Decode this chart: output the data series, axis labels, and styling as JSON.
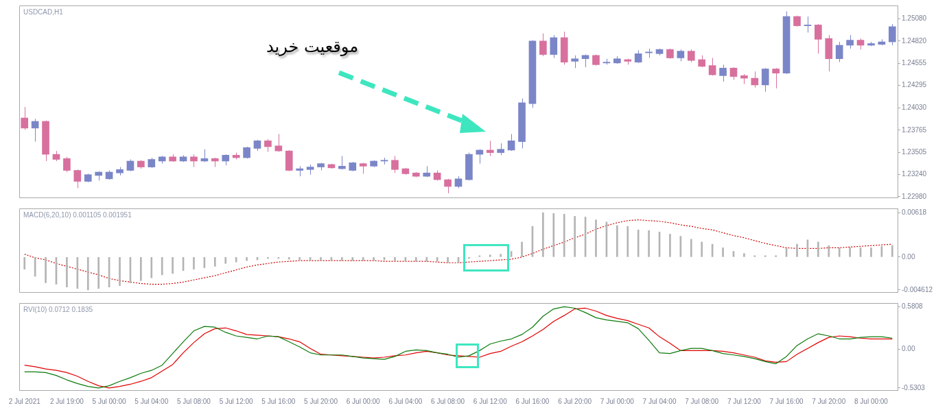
{
  "chart_data": [
    {
      "type": "candlestick",
      "title": "USDCAD,H1",
      "ohlc": [
        [
          1.2391,
          1.2404,
          1.2377,
          1.2379
        ],
        [
          1.2379,
          1.239,
          1.2363,
          1.2387
        ],
        [
          1.2387,
          1.2388,
          1.234,
          1.2348
        ],
        [
          1.2348,
          1.2352,
          1.234,
          1.2342
        ],
        [
          1.2343,
          1.2345,
          1.2327,
          1.2329
        ],
        [
          1.2329,
          1.233,
          1.2308,
          1.2316
        ],
        [
          1.2316,
          1.2325,
          1.2315,
          1.2324
        ],
        [
          1.2323,
          1.2328,
          1.2317,
          1.2327
        ],
        [
          1.2319,
          1.2329,
          1.2318,
          1.2327
        ],
        [
          1.2326,
          1.2333,
          1.2323,
          1.233
        ],
        [
          1.2329,
          1.2342,
          1.2328,
          1.234
        ],
        [
          1.234,
          1.2341,
          1.2331,
          1.2333
        ],
        [
          1.2333,
          1.2344,
          1.2332,
          1.2342
        ],
        [
          1.234,
          1.2346,
          1.2337,
          1.2345
        ],
        [
          1.2345,
          1.2348,
          1.2339,
          1.234
        ],
        [
          1.234,
          1.2347,
          1.2339,
          1.2345
        ],
        [
          1.2345,
          1.2348,
          1.2333,
          1.234
        ],
        [
          1.234,
          1.2354,
          1.2339,
          1.2343
        ],
        [
          1.2343,
          1.2344,
          1.2333,
          1.234
        ],
        [
          1.234,
          1.2348,
          1.2335,
          1.2347
        ],
        [
          1.2347,
          1.235,
          1.2342,
          1.2344
        ],
        [
          1.2344,
          1.2357,
          1.2343,
          1.2356
        ],
        [
          1.2355,
          1.2365,
          1.2352,
          1.2364
        ],
        [
          1.2364,
          1.2366,
          1.2351,
          1.2357
        ],
        [
          1.2358,
          1.2372,
          1.2351,
          1.2352
        ],
        [
          1.2352,
          1.2353,
          1.2328,
          1.2329
        ],
        [
          1.2329,
          1.2334,
          1.2322,
          1.2331
        ],
        [
          1.233,
          1.2336,
          1.2324,
          1.2333
        ],
        [
          1.2333,
          1.2338,
          1.2329,
          1.2337
        ],
        [
          1.2336,
          1.2337,
          1.2331,
          1.2332
        ],
        [
          1.2331,
          1.2346,
          1.233,
          1.2334
        ],
        [
          1.2329,
          1.2339,
          1.2328,
          1.2338
        ],
        [
          1.2337,
          1.2338,
          1.2325,
          1.2334
        ],
        [
          1.2334,
          1.2341,
          1.2333,
          1.234
        ],
        [
          1.234,
          1.2344,
          1.2336,
          1.2341
        ],
        [
          1.2341,
          1.2346,
          1.2326,
          1.233
        ],
        [
          1.2331,
          1.2332,
          1.2324,
          1.2325
        ],
        [
          1.2326,
          1.2327,
          1.2321,
          1.2322
        ],
        [
          1.2322,
          1.2334,
          1.2321,
          1.2326
        ],
        [
          1.2326,
          1.2329,
          1.2317,
          1.2318
        ],
        [
          1.2318,
          1.2319,
          1.2302,
          1.231
        ],
        [
          1.231,
          1.2322,
          1.2308,
          1.2319
        ],
        [
          1.2318,
          1.235,
          1.2317,
          1.2348
        ],
        [
          1.2348,
          1.2354,
          1.2337,
          1.2353
        ],
        [
          1.2353,
          1.2364,
          1.2346,
          1.235
        ],
        [
          1.235,
          1.2361,
          1.2347,
          1.2354
        ],
        [
          1.2353,
          1.2372,
          1.2352,
          1.2364
        ],
        [
          1.2363,
          1.2414,
          1.2355,
          1.2409
        ],
        [
          1.2408,
          1.2483,
          1.2403,
          1.2482
        ],
        [
          1.2482,
          1.2491,
          1.2464,
          1.2466
        ],
        [
          1.2466,
          1.2489,
          1.2462,
          1.2486
        ],
        [
          1.2486,
          1.2493,
          1.2454,
          1.2457
        ],
        [
          1.2458,
          1.2465,
          1.245,
          1.2461
        ],
        [
          1.2461,
          1.2466,
          1.2451,
          1.2465
        ],
        [
          1.2465,
          1.2466,
          1.2453,
          1.2454
        ],
        [
          1.2456,
          1.2461,
          1.2454,
          1.2457
        ],
        [
          1.2456,
          1.2464,
          1.2455,
          1.2461
        ],
        [
          1.246,
          1.2461,
          1.2454,
          1.2458
        ],
        [
          1.2457,
          1.2471,
          1.2456,
          1.2467
        ],
        [
          1.2468,
          1.2473,
          1.2462,
          1.2469
        ],
        [
          1.2467,
          1.2473,
          1.2465,
          1.2472
        ],
        [
          1.2472,
          1.2473,
          1.2461,
          1.2462
        ],
        [
          1.2462,
          1.2472,
          1.2458,
          1.247
        ],
        [
          1.247,
          1.2472,
          1.2457,
          1.2459
        ],
        [
          1.246,
          1.2465,
          1.2451,
          1.2452
        ],
        [
          1.2453,
          1.2462,
          1.2441,
          1.2442
        ],
        [
          1.2441,
          1.2454,
          1.2434,
          1.245
        ],
        [
          1.245,
          1.2451,
          1.2436,
          1.244
        ],
        [
          1.2441,
          1.2443,
          1.2431,
          1.2438
        ],
        [
          1.2438,
          1.2446,
          1.2427,
          1.243
        ],
        [
          1.243,
          1.245,
          1.2422,
          1.2449
        ],
        [
          1.2449,
          1.245,
          1.2426,
          1.2444
        ],
        [
          1.2444,
          1.2517,
          1.2443,
          1.2511
        ],
        [
          1.2511,
          1.2512,
          1.2499,
          1.25
        ],
        [
          1.25,
          1.2511,
          1.2492,
          1.2501
        ],
        [
          1.2501,
          1.2502,
          1.2467,
          1.2484
        ],
        [
          1.2485,
          1.2489,
          1.2446,
          1.2461
        ],
        [
          1.2461,
          1.2481,
          1.2457,
          1.2477
        ],
        [
          1.2477,
          1.2489,
          1.2473,
          1.2483
        ],
        [
          1.2483,
          1.2485,
          1.2472,
          1.2477
        ],
        [
          1.2477,
          1.2481,
          1.2476,
          1.2479
        ],
        [
          1.2478,
          1.2484,
          1.2477,
          1.2481
        ],
        [
          1.2481,
          1.2502,
          1.2477,
          1.2499
        ]
      ],
      "colors": [
        "#d8709e",
        "#7b86c8",
        "#d8709e",
        "#d8709e",
        "#d8709e",
        "#d8709e",
        "#7b86c8",
        "#7b86c8",
        "#7b86c8",
        "#7b86c8",
        "#7b86c8",
        "#d8709e",
        "#7b86c8",
        "#7b86c8",
        "#d8709e",
        "#7b86c8",
        "#d8709e",
        "#7b86c8",
        "#d8709e",
        "#7b86c8",
        "#d8709e",
        "#7b86c8",
        "#7b86c8",
        "#d8709e",
        "#d8709e",
        "#d8709e",
        "#7b86c8",
        "#7b86c8",
        "#7b86c8",
        "#d8709e",
        "#7b86c8",
        "#7b86c8",
        "#d8709e",
        "#7b86c8",
        "#7b86c8",
        "#d8709e",
        "#d8709e",
        "#d8709e",
        "#7b86c8",
        "#d8709e",
        "#d8709e",
        "#7b86c8",
        "#7b86c8",
        "#7b86c8",
        "#d8709e",
        "#7b86c8",
        "#7b86c8",
        "#7b86c8",
        "#7b86c8",
        "#d8709e",
        "#7b86c8",
        "#d8709e",
        "#7b86c8",
        "#7b86c8",
        "#d8709e",
        "#7b86c8",
        "#7b86c8",
        "#d8709e",
        "#7b86c8",
        "#7b86c8",
        "#7b86c8",
        "#d8709e",
        "#7b86c8",
        "#d8709e",
        "#d8709e",
        "#d8709e",
        "#7b86c8",
        "#d8709e",
        "#d8709e",
        "#d8709e",
        "#7b86c8",
        "#d8709e",
        "#7b86c8",
        "#d8709e",
        "#7b86c8",
        "#d8709e",
        "#d8709e",
        "#7b86c8",
        "#7b86c8",
        "#d8709e",
        "#7b86c8",
        "#7b86c8",
        "#7b86c8"
      ],
      "ylim": [
        1.2297,
        1.2524
      ],
      "yticks": [
        {
          "value": 1.2298,
          "label": "1.22980"
        },
        {
          "value": 1.2324,
          "label": "1.23240"
        },
        1.23505,
        1.23765,
        {
          "value": 1.2403,
          "label": "1.24030"
        },
        1.24295,
        1.24555,
        {
          "value": 1.2482,
          "label": "1.24820"
        },
        {
          "value": 1.2508,
          "label": "1.25080"
        }
      ],
      "tick_labels": "y",
      "annotations": [
        "موقعیت خرید"
      ]
    },
    {
      "type": "bar",
      "title": "MACD(6,20,10) 0.001105 0.001951",
      "series": [
        {
          "type": "bar",
          "color": "#b4b4b4",
          "values": [
            -0.0017,
            -0.0027,
            -0.0036,
            -0.0038,
            -0.0042,
            -0.0044,
            -0.0046,
            -0.0044,
            -0.0042,
            -0.004,
            -0.0036,
            -0.0033,
            -0.0029,
            -0.0025,
            -0.0023,
            -0.0019,
            -0.0017,
            -0.0015,
            -0.0013,
            -0.0009,
            -0.0007,
            -0.0005,
            -0.0004,
            -0.0002,
            -0.0002,
            -0.0003,
            -0.0004,
            -0.0005,
            -0.0005,
            -0.0005,
            -0.0005,
            -0.0005,
            -0.0005,
            -0.0005,
            -0.0004,
            -0.0005,
            -0.0006,
            -0.0006,
            -0.0006,
            -0.0006,
            -0.0008,
            -0.0008,
            -0.0002,
            0.0001,
            0.0003,
            0.0004,
            0.0008,
            0.0021,
            0.0043,
            0.0062,
            0.0061,
            0.006,
            0.0057,
            0.0056,
            0.0052,
            0.0049,
            0.0044,
            0.0043,
            0.0038,
            0.0037,
            0.0035,
            0.0032,
            0.0029,
            0.0025,
            0.0021,
            0.0018,
            0.0013,
            0.0008,
            0.0005,
            0.0002,
            0.0002,
            0.0002,
            0.0012,
            0.0018,
            0.0024,
            0.0021,
            0.0016,
            0.0013,
            0.0013,
            0.0013,
            0.0013,
            0.0015,
            0.0016
          ]
        },
        {
          "type": "line",
          "color": "#cc0000",
          "line_style": "dotted",
          "values": [
            0.0004,
            -0.0001,
            -0.0004,
            -0.0009,
            -0.0013,
            -0.0017,
            -0.0021,
            -0.0025,
            -0.003,
            -0.0033,
            -0.0035,
            -0.0037,
            -0.0038,
            -0.0038,
            -0.0037,
            -0.0035,
            -0.0032,
            -0.0029,
            -0.0026,
            -0.0022,
            -0.0018,
            -0.0014,
            -0.0011,
            -0.0009,
            -0.0007,
            -0.0006,
            -0.0005,
            -0.0005,
            -0.0005,
            -0.0005,
            -0.0005,
            -0.0005,
            -0.0005,
            -0.0005,
            -0.0006,
            -0.0006,
            -0.0006,
            -0.0006,
            -0.0006,
            -0.0007,
            -0.0008,
            -0.0008,
            -0.0007,
            -0.0006,
            -0.0005,
            -0.0004,
            -0.0003,
            0.0,
            0.0005,
            0.0011,
            0.0016,
            0.0021,
            0.0027,
            0.0032,
            0.0039,
            0.0044,
            0.0048,
            0.0051,
            0.0052,
            0.0051,
            0.005,
            0.0048,
            0.0045,
            0.0043,
            0.004,
            0.0038,
            0.0034,
            0.003,
            0.0027,
            0.0023,
            0.0019,
            0.0016,
            0.0013,
            0.0012,
            0.0012,
            0.0012,
            0.0013,
            0.0013,
            0.0014,
            0.0015,
            0.0016,
            0.0017,
            0.0018
          ]
        }
      ],
      "ylim": [
        -0.0049,
        0.0068
      ],
      "yticks": [
        -0.004612,
        {
          "value": 0,
          "label": "0.00"
        },
        0.00618
      ],
      "tick_labels": "y",
      "marker": "none"
    },
    {
      "type": "line",
      "title": "RVI(10) 0.0712 0.1835",
      "categories": [
        "2 Jul 2021",
        null,
        null,
        null,
        "2 Jul 19:00",
        null,
        null,
        null,
        "5 Jul 00:00",
        null,
        null,
        null,
        "5 Jul 04:00",
        null,
        null,
        null,
        "5 Jul 08:00",
        null,
        null,
        null,
        "5 Jul 12:00",
        null,
        null,
        null,
        "5 Jul 16:00",
        null,
        null,
        null,
        "5 Jul 20:00",
        null,
        null,
        null,
        "6 Jul 00:00",
        null,
        null,
        null,
        "6 Jul 04:00",
        null,
        null,
        null,
        "6 Jul 08:00",
        null,
        null,
        null,
        "6 Jul 12:00",
        null,
        null,
        null,
        "6 Jul 16:00",
        null,
        null,
        null,
        "6 Jul 20:00",
        null,
        null,
        null,
        "7 Jul 00:00",
        null,
        null,
        null,
        "7 Jul 04:00",
        null,
        null,
        null,
        "7 Jul 08:00",
        null,
        null,
        null,
        "7 Jul 12:00",
        null,
        null,
        null,
        "7 Jul 16:00",
        null,
        null,
        null,
        "7 Jul 20:00",
        null,
        null,
        null,
        "8 Jul 00:00",
        null,
        null
      ],
      "series": [
        {
          "color": "#0b7a0b",
          "values": [
            -0.31,
            -0.31,
            -0.32,
            -0.36,
            -0.42,
            -0.47,
            -0.51,
            -0.53,
            -0.5,
            -0.44,
            -0.39,
            -0.33,
            -0.29,
            -0.22,
            -0.06,
            0.1,
            0.25,
            0.31,
            0.3,
            0.23,
            0.18,
            0.16,
            0.14,
            0.18,
            0.17,
            0.1,
            0.03,
            -0.05,
            -0.08,
            -0.08,
            -0.08,
            -0.1,
            -0.12,
            -0.13,
            -0.14,
            -0.1,
            -0.03,
            -0.01,
            -0.02,
            -0.05,
            -0.07,
            -0.11,
            -0.09,
            -0.02,
            0.07,
            0.11,
            0.14,
            0.2,
            0.3,
            0.45,
            0.55,
            0.58,
            0.56,
            0.5,
            0.43,
            0.4,
            0.38,
            0.36,
            0.28,
            0.12,
            -0.05,
            -0.06,
            -0.02,
            0.01,
            0.01,
            -0.02,
            -0.06,
            -0.08,
            -0.1,
            -0.13,
            -0.17,
            -0.2,
            -0.1,
            0.05,
            0.14,
            0.21,
            0.18,
            0.14,
            0.14,
            0.16,
            0.17,
            0.17,
            0.15
          ]
        },
        {
          "color": "#e00000",
          "values": [
            -0.22,
            -0.24,
            -0.27,
            -0.29,
            -0.32,
            -0.37,
            -0.44,
            -0.5,
            -0.53,
            -0.51,
            -0.48,
            -0.44,
            -0.39,
            -0.3,
            -0.21,
            -0.05,
            0.09,
            0.21,
            0.28,
            0.29,
            0.25,
            0.2,
            0.19,
            0.18,
            0.17,
            0.14,
            0.1,
            0.01,
            -0.07,
            -0.08,
            -0.09,
            -0.1,
            -0.11,
            -0.12,
            -0.11,
            -0.09,
            -0.08,
            -0.05,
            -0.03,
            -0.05,
            -0.08,
            -0.09,
            -0.1,
            -0.11,
            -0.06,
            -0.03,
            0.04,
            0.1,
            0.18,
            0.27,
            0.38,
            0.46,
            0.55,
            0.56,
            0.52,
            0.46,
            0.42,
            0.39,
            0.34,
            0.29,
            0.17,
            0.08,
            -0.02,
            -0.02,
            -0.02,
            -0.02,
            -0.03,
            -0.05,
            -0.08,
            -0.11,
            -0.16,
            -0.18,
            -0.17,
            -0.07,
            0.01,
            0.09,
            0.16,
            0.18,
            0.17,
            0.15,
            0.14,
            0.14,
            0.14
          ]
        }
      ],
      "ylim": [
        -0.56,
        0.63
      ],
      "yticks": [
        -0.5303,
        {
          "value": 0,
          "label": "0.00"
        },
        0.5808
      ],
      "marker": "none"
    }
  ]
}
